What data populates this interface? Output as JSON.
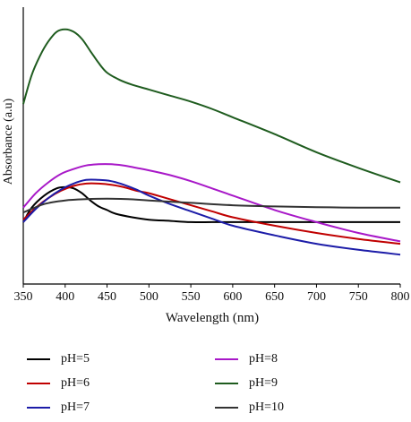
{
  "chart_data": {
    "type": "line",
    "title": "",
    "xlabel": "Wavelength (nm)",
    "ylabel": "Absorbance (a.u)",
    "xlim": [
      350,
      800
    ],
    "ylim": [
      0,
      1
    ],
    "y_ticks_shown": false,
    "grid": false,
    "legend_position": "bottom",
    "x_ticks": [
      350,
      400,
      450,
      500,
      550,
      600,
      650,
      700,
      750,
      800
    ],
    "series": [
      {
        "name": "pH=5",
        "color": "#000000",
        "x": [
          350,
          360,
          375,
          390,
          400,
          410,
          420,
          430,
          440,
          450,
          460,
          480,
          500,
          525,
          550,
          575,
          600,
          650,
          700,
          750,
          800
        ],
        "y": [
          0.19,
          0.25,
          0.3,
          0.33,
          0.335,
          0.33,
          0.31,
          0.28,
          0.255,
          0.24,
          0.225,
          0.21,
          0.2,
          0.195,
          0.19,
          0.19,
          0.19,
          0.19,
          0.19,
          0.19,
          0.19
        ]
      },
      {
        "name": "pH=6",
        "color": "#c00000",
        "x": [
          350,
          365,
          380,
          395,
          410,
          425,
          440,
          455,
          470,
          485,
          500,
          525,
          550,
          575,
          600,
          650,
          700,
          750,
          800
        ],
        "y": [
          0.2,
          0.25,
          0.29,
          0.32,
          0.34,
          0.35,
          0.35,
          0.345,
          0.335,
          0.32,
          0.31,
          0.285,
          0.26,
          0.235,
          0.21,
          0.175,
          0.145,
          0.12,
          0.1
        ]
      },
      {
        "name": "pH=7",
        "color": "#1c1ca8",
        "x": [
          350,
          365,
          380,
          395,
          410,
          425,
          440,
          455,
          470,
          485,
          500,
          525,
          550,
          575,
          600,
          650,
          700,
          750,
          800
        ],
        "y": [
          0.19,
          0.245,
          0.29,
          0.325,
          0.35,
          0.365,
          0.365,
          0.36,
          0.345,
          0.325,
          0.3,
          0.265,
          0.235,
          0.205,
          0.175,
          0.135,
          0.1,
          0.075,
          0.055
        ]
      },
      {
        "name": "pH=8",
        "color": "#a818c8",
        "x": [
          350,
          365,
          380,
          395,
          410,
          425,
          440,
          455,
          470,
          485,
          500,
          525,
          550,
          575,
          600,
          650,
          700,
          750,
          800
        ],
        "y": [
          0.25,
          0.31,
          0.355,
          0.39,
          0.41,
          0.425,
          0.43,
          0.43,
          0.425,
          0.415,
          0.405,
          0.385,
          0.36,
          0.33,
          0.3,
          0.24,
          0.19,
          0.145,
          0.11
        ]
      },
      {
        "name": "pH=9",
        "color": "#1f5c1f",
        "x": [
          350,
          360,
          370,
          380,
          390,
          400,
          410,
          420,
          430,
          440,
          450,
          465,
          480,
          500,
          525,
          550,
          575,
          600,
          650,
          700,
          750,
          800
        ],
        "y": [
          0.68,
          0.8,
          0.88,
          0.94,
          0.98,
          0.99,
          0.98,
          0.95,
          0.9,
          0.85,
          0.81,
          0.78,
          0.76,
          0.74,
          0.715,
          0.69,
          0.66,
          0.625,
          0.555,
          0.48,
          0.415,
          0.355
        ]
      },
      {
        "name": "pH=10",
        "color": "#333333",
        "x": [
          350,
          375,
          400,
          425,
          450,
          475,
          500,
          550,
          600,
          650,
          700,
          750,
          800
        ],
        "y": [
          0.23,
          0.265,
          0.28,
          0.285,
          0.287,
          0.285,
          0.28,
          0.27,
          0.26,
          0.255,
          0.252,
          0.25,
          0.25
        ]
      }
    ]
  }
}
